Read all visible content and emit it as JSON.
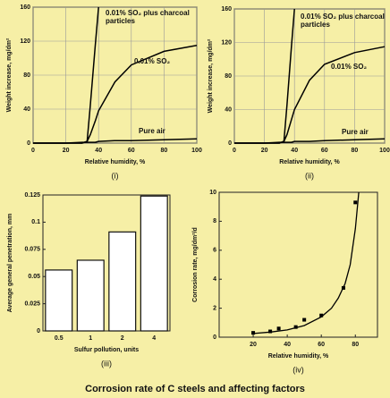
{
  "title": "Corrosion rate of C steels and affecting factors",
  "chart_data": [
    {
      "type": "line",
      "caption": "(i)",
      "xlabel": "Relative humidity, %",
      "ylabel": "Weight increase, mg/dm²",
      "x": [
        0,
        20,
        30,
        33,
        35,
        38,
        40,
        50,
        60,
        80,
        100
      ],
      "series": [
        {
          "name": "0.01% SO₂ plus charcoal particles",
          "color": "#000000",
          "values": [
            0,
            0,
            0,
            2,
            45,
            115,
            160,
            null,
            null,
            null,
            null
          ]
        },
        {
          "name": "0.01% SO₂",
          "color": "#000000",
          "values": [
            0,
            0,
            0,
            2,
            10,
            26,
            38,
            72,
            92,
            108,
            115
          ]
        },
        {
          "name": "Pure air",
          "color": "#000000",
          "values": [
            0,
            0,
            1,
            1,
            1,
            1,
            2,
            3,
            3,
            4,
            5
          ]
        }
      ],
      "xlim": [
        0,
        100
      ],
      "ylim": [
        0,
        160
      ],
      "xticks": [
        0,
        20,
        40,
        60,
        80,
        100
      ],
      "yticks": [
        0,
        40,
        80,
        120,
        160
      ],
      "grid": true
    },
    {
      "type": "line",
      "caption": "(ii)",
      "xlabel": "Relative humidity, %",
      "ylabel": "Weight increase, mg/dm²",
      "x": [
        0,
        20,
        30,
        33,
        35,
        38,
        40,
        50,
        60,
        80,
        100
      ],
      "series": [
        {
          "name": "0.01% SO₂ plus charcoal particles",
          "color": "#000000",
          "values": [
            0,
            0,
            0,
            2,
            45,
            115,
            160,
            null,
            null,
            null,
            null
          ]
        },
        {
          "name": "0.01% SO₂",
          "color": "#000000",
          "values": [
            0,
            0,
            0,
            2,
            10,
            28,
            40,
            75,
            94,
            108,
            115
          ]
        },
        {
          "name": "Pure air",
          "color": "#000000",
          "values": [
            0,
            0,
            1,
            1,
            1,
            1,
            2,
            2,
            3,
            4,
            5
          ]
        }
      ],
      "xlim": [
        0,
        100
      ],
      "ylim": [
        0,
        160
      ],
      "xticks": [
        0,
        20,
        40,
        60,
        80,
        100
      ],
      "yticks": [
        0,
        40,
        80,
        120,
        160
      ],
      "grid": true
    },
    {
      "type": "bar",
      "caption": "(iii)",
      "xlabel": "Sulfur pollution, units",
      "ylabel": "Average general penetration, mm",
      "categories": [
        "0.5",
        "1",
        "2",
        "4"
      ],
      "values": [
        0.056,
        0.065,
        0.091,
        0.124
      ],
      "color": "#ffffff",
      "ylim": [
        0,
        0.125
      ],
      "yticks": [
        0,
        0.025,
        0.05,
        0.075,
        0.1,
        0.125
      ],
      "grid": false
    },
    {
      "type": "scatter",
      "caption": "(iv)",
      "xlabel": "Relative humidity, %",
      "ylabel": "Corrosion rate, mg/dm²/d",
      "x": [
        20,
        30,
        35,
        45,
        50,
        60,
        73,
        80
      ],
      "values": [
        0.3,
        0.4,
        0.6,
        0.7,
        1.2,
        1.5,
        3.4,
        9.3
      ],
      "color": "#000000",
      "curve": {
        "x": [
          20,
          30,
          40,
          50,
          60,
          66,
          70,
          74,
          77,
          80,
          82
        ],
        "values": [
          0.25,
          0.35,
          0.5,
          0.8,
          1.4,
          2.0,
          2.7,
          3.7,
          5.0,
          7.5,
          10
        ]
      },
      "xlim": [
        0,
        93
      ],
      "ylim": [
        0,
        10
      ],
      "xticks": [
        20,
        40,
        60,
        80
      ],
      "yticks": [
        0,
        2,
        4,
        6,
        8,
        10
      ],
      "grid": false
    }
  ]
}
